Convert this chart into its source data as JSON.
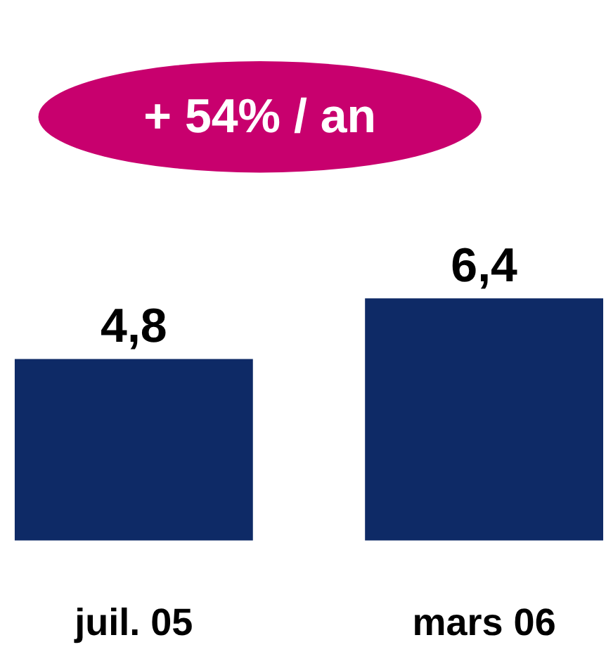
{
  "chart_data": {
    "type": "bar",
    "categories": [
      "juil. 05",
      "mars 06"
    ],
    "values": [
      4.8,
      6.4
    ],
    "value_labels": [
      "4,8",
      "6,4"
    ],
    "color": "#0e2a66",
    "annotations": [
      "+ 54% / an"
    ],
    "grid": false
  }
}
